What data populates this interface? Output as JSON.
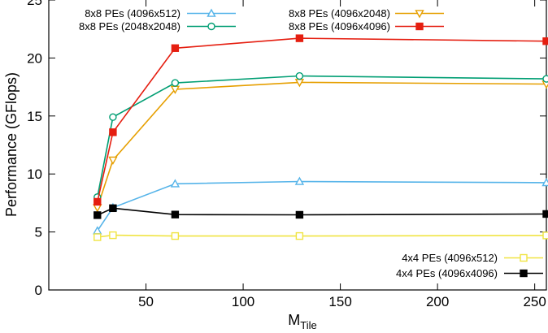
{
  "chart_data": {
    "type": "line",
    "title": "",
    "xlabel": "M",
    "xlabel_sub": "Tile",
    "ylabel": "Performance (GFlops)",
    "xlim": [
      0,
      256
    ],
    "ylim": [
      0,
      25
    ],
    "xticks": [
      50,
      100,
      150,
      200,
      250
    ],
    "xtick_labels": [
      "50",
      "100",
      "150",
      "200",
      "250"
    ],
    "yticks": [
      0,
      5,
      10,
      15,
      20,
      25
    ],
    "ytick_labels": [
      "0",
      "5",
      "10",
      "15",
      "20",
      "25"
    ],
    "grid": false,
    "legends": [
      {
        "placement": "top-left",
        "series": [
          0,
          1,
          2,
          3
        ]
      },
      {
        "placement": "bottom-right",
        "series": [
          4,
          5
        ]
      }
    ],
    "series": [
      {
        "name": "8x8 PEs (4096x512)",
        "color": "#56b4e9",
        "marker": "triangle-up-open",
        "x": [
          25,
          33,
          65,
          129,
          256
        ],
        "y": [
          5.1,
          7.1,
          9.15,
          9.35,
          9.25
        ]
      },
      {
        "name": "8x8 PEs (4096x2048)",
        "color": "#e69f00",
        "marker": "triangle-down-open",
        "x": [
          25,
          33,
          65,
          129,
          256
        ],
        "y": [
          7.1,
          11.2,
          17.3,
          17.9,
          17.75
        ]
      },
      {
        "name": "8x8 PEs (2048x2048)",
        "color": "#009e73",
        "marker": "circle-open",
        "x": [
          25,
          33,
          65,
          129,
          256
        ],
        "y": [
          8.0,
          14.9,
          17.85,
          18.45,
          18.2
        ]
      },
      {
        "name": "8x8 PEs (4096x4096)",
        "color": "#e51e10",
        "marker": "square-filled",
        "x": [
          25,
          33,
          65,
          129,
          256
        ],
        "y": [
          7.6,
          13.6,
          20.85,
          21.7,
          21.45
        ]
      },
      {
        "name": "4x4 PEs (4096x512)",
        "color": "#f0e442",
        "marker": "square-open",
        "x": [
          25,
          33,
          65,
          129,
          256
        ],
        "y": [
          4.55,
          4.72,
          4.65,
          4.65,
          4.7
        ]
      },
      {
        "name": "4x4 PEs (4096x4096)",
        "color": "#000000",
        "marker": "square-filled",
        "x": [
          25,
          33,
          65,
          129,
          256
        ],
        "y": [
          6.45,
          7.05,
          6.5,
          6.48,
          6.55
        ]
      }
    ]
  }
}
